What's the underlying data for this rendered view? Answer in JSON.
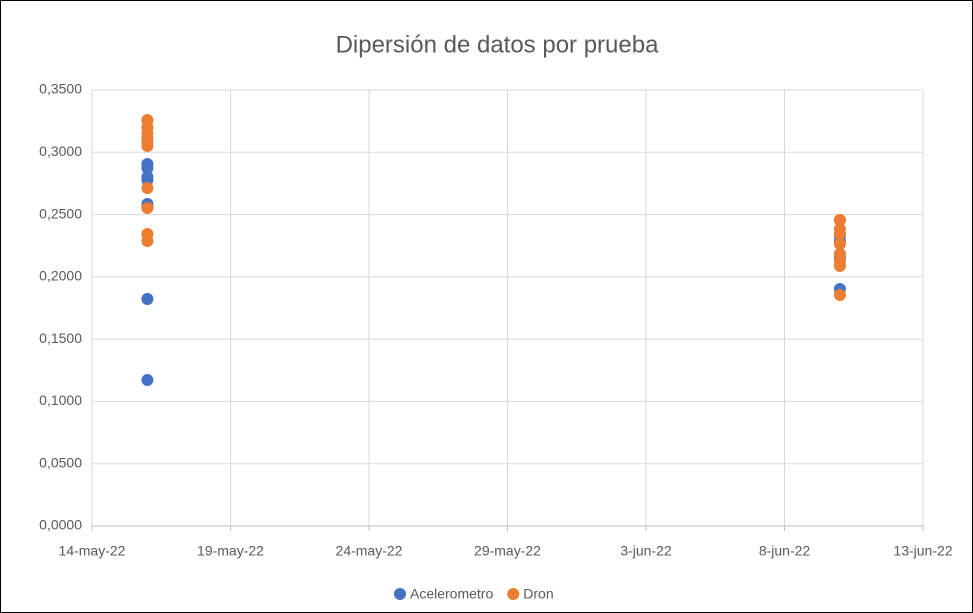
{
  "chart_data": {
    "type": "scatter",
    "title": "Dipersión de datos por prueba",
    "xlim": [
      "2022-05-14",
      "2022-06-13"
    ],
    "xticks": [
      {
        "value": "2022-05-14",
        "label": "14-may-22"
      },
      {
        "value": "2022-05-19",
        "label": "19-may-22"
      },
      {
        "value": "2022-05-24",
        "label": "24-may-22"
      },
      {
        "value": "2022-05-29",
        "label": "29-may-22"
      },
      {
        "value": "2022-06-03",
        "label": "3-jun-22"
      },
      {
        "value": "2022-06-08",
        "label": "8-jun-22"
      },
      {
        "value": "2022-06-13",
        "label": "13-jun-22"
      }
    ],
    "ylim": [
      0,
      0.35
    ],
    "yticks": [
      {
        "value": 0,
        "label": "0,0000"
      },
      {
        "value": 0.05,
        "label": "0,0500"
      },
      {
        "value": 0.1,
        "label": "0,1000"
      },
      {
        "value": 0.15,
        "label": "0,1500"
      },
      {
        "value": 0.2,
        "label": "0,2000"
      },
      {
        "value": 0.25,
        "label": "0,2500"
      },
      {
        "value": 0.3,
        "label": "0,3000"
      },
      {
        "value": 0.35,
        "label": "0,3500"
      }
    ],
    "grid": true,
    "legend": "bottom",
    "series": [
      {
        "name": "Acelerometro",
        "color": "#4472c4",
        "x": [
          "2022-05-16",
          "2022-05-16",
          "2022-05-16",
          "2022-05-16",
          "2022-05-16",
          "2022-05-16",
          "2022-05-16",
          "2022-05-16",
          "2022-06-10",
          "2022-06-10",
          "2022-06-10",
          "2022-06-10",
          "2022-06-10",
          "2022-06-10"
        ],
        "values": [
          0.2906,
          0.2874,
          0.2802,
          0.2778,
          0.2585,
          0.2561,
          0.1822,
          0.1172,
          0.2456,
          0.2328,
          0.2288,
          0.2184,
          0.2151,
          0.1903
        ]
      },
      {
        "name": "Dron",
        "color": "#ed7d31",
        "x": [
          "2022-05-16",
          "2022-05-16",
          "2022-05-16",
          "2022-05-16",
          "2022-05-16",
          "2022-05-16",
          "2022-05-16",
          "2022-05-16",
          "2022-05-16",
          "2022-05-16",
          "2022-06-10",
          "2022-06-10",
          "2022-06-10",
          "2022-06-10",
          "2022-06-10",
          "2022-06-10",
          "2022-06-10",
          "2022-06-10"
        ],
        "values": [
          0.3259,
          0.3203,
          0.3155,
          0.3115,
          0.3083,
          0.305,
          0.2713,
          0.2553,
          0.2344,
          0.2288,
          0.2456,
          0.2384,
          0.2344,
          0.2264,
          0.2184,
          0.2127,
          0.2087,
          0.1854
        ]
      }
    ]
  }
}
